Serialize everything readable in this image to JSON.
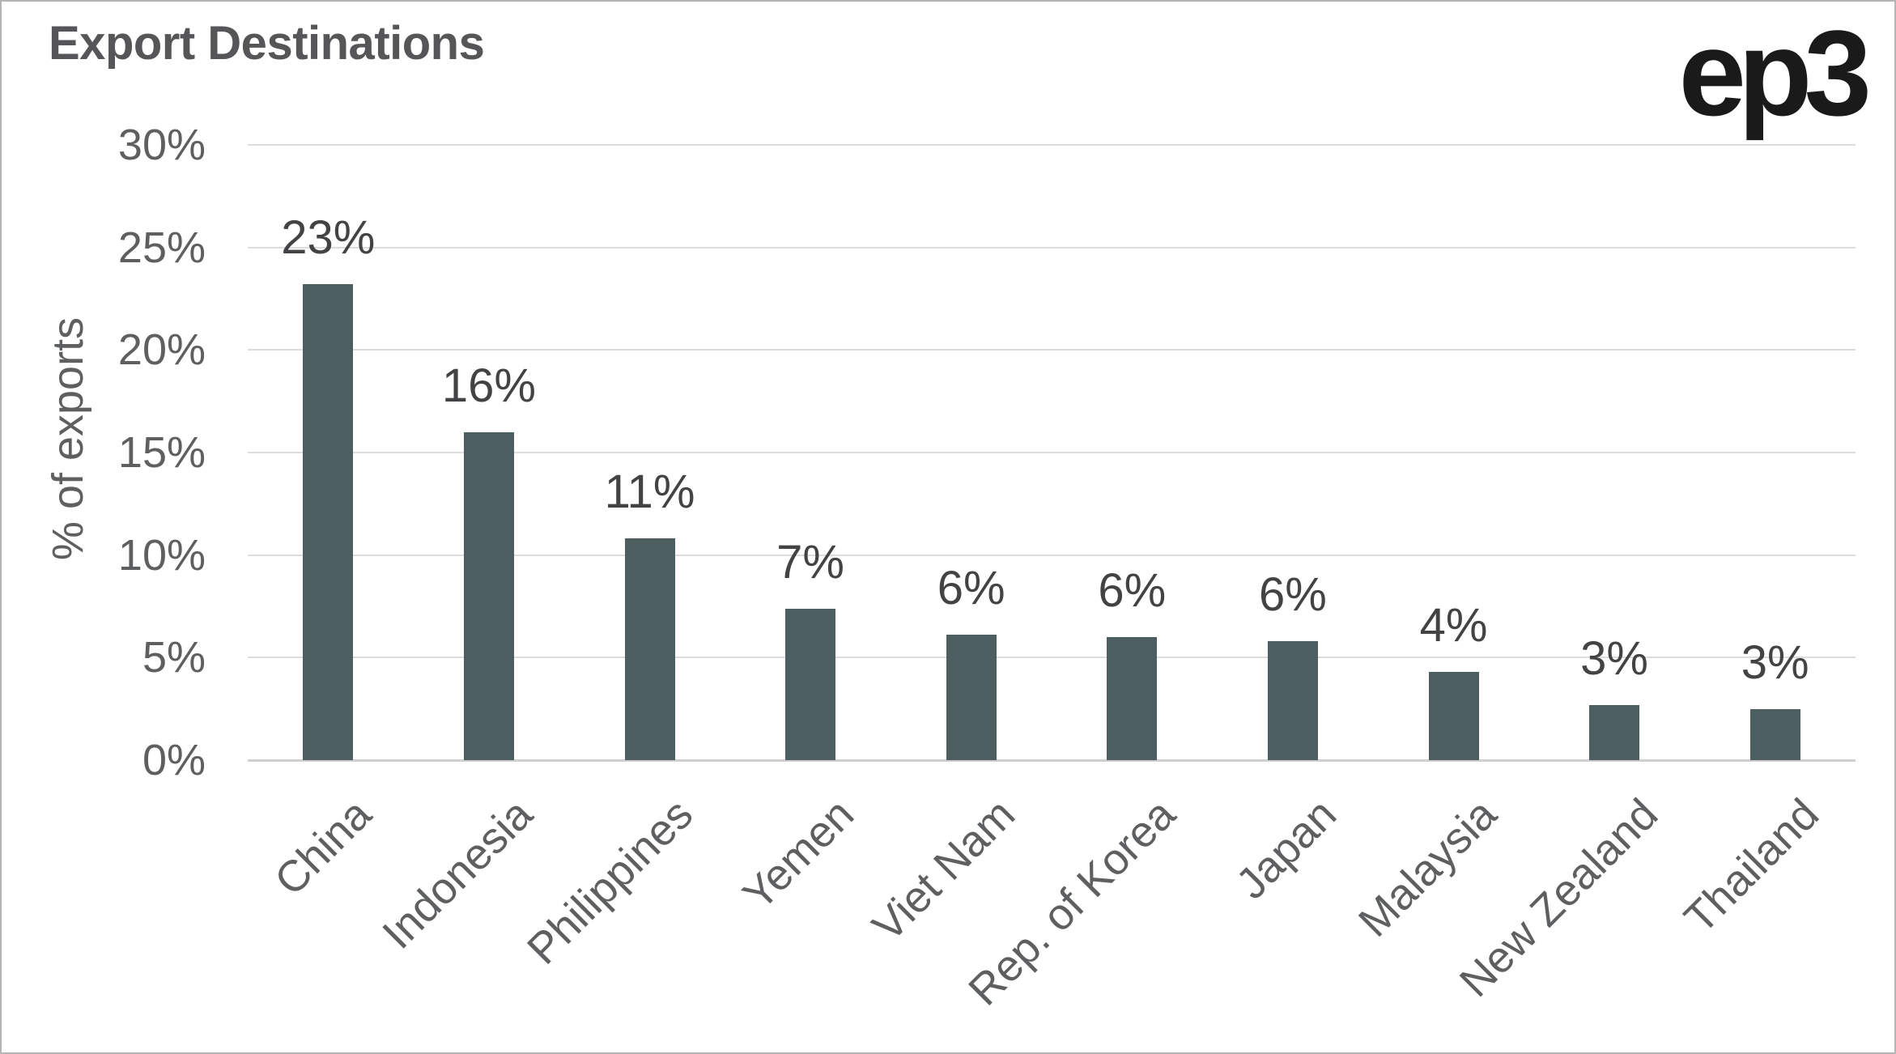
{
  "header": {
    "title": "Export Destinations",
    "logo": "ep3"
  },
  "y_axis": {
    "label": "% of exports",
    "ticks": [
      "30%",
      "25%",
      "20%",
      "15%",
      "10%",
      "5%",
      "0%"
    ]
  },
  "chart_data": {
    "type": "bar",
    "title": "Export Destinations",
    "categories": [
      "China",
      "Indonesia",
      "Philippines",
      "Yemen",
      "Viet Nam",
      "Rep. of Korea",
      "Japan",
      "Malaysia",
      "New Zealand",
      "Thailand"
    ],
    "values": [
      23.2,
      16.0,
      10.8,
      7.4,
      6.1,
      6.0,
      5.8,
      4.3,
      2.7,
      2.5
    ],
    "value_labels": [
      "23%",
      "16%",
      "11%",
      "7%",
      "6%",
      "6%",
      "6%",
      "4%",
      "3%",
      "3%"
    ],
    "xlabel": "",
    "ylabel": "% of exports",
    "ylim": [
      0,
      30
    ],
    "ytick_step": 5,
    "grid": true,
    "legend": false
  },
  "colors": {
    "bar": "#4d5e61",
    "title": "#565658",
    "axis_text": "#5e5f61",
    "value_label": "#434345",
    "gridline": "#dcdcdc",
    "baseline": "#cfcfcf",
    "logo": "#1a1a1a",
    "border": "#b5b5b5"
  }
}
